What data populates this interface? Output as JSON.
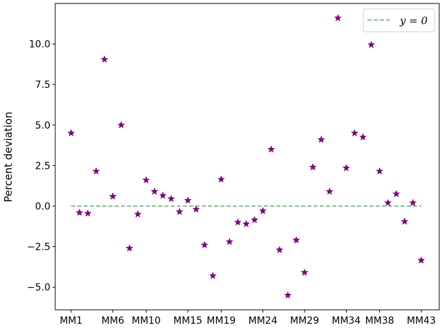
{
  "chart_data": {
    "type": "scatter",
    "ylabel": "Percent deviation",
    "xlabel": "",
    "ylim": [
      -6.4,
      12.5
    ],
    "yticks": [
      -5.0,
      -2.5,
      0.0,
      2.5,
      5.0,
      7.5,
      10.0
    ],
    "ytick_labels": [
      "−5.0",
      "−2.5",
      "0.0",
      "2.5",
      "5.0",
      "7.5",
      "10.0"
    ],
    "xticks": [
      {
        "index": 0,
        "label": "MM1"
      },
      {
        "index": 5,
        "label": "MM6"
      },
      {
        "index": 9,
        "label": "MM10"
      },
      {
        "index": 14,
        "label": "MM15"
      },
      {
        "index": 18,
        "label": "MM19"
      },
      {
        "index": 23,
        "label": "MM24"
      },
      {
        "index": 28,
        "label": "MM29"
      },
      {
        "index": 33,
        "label": "MM34"
      },
      {
        "index": 37,
        "label": "MM38"
      },
      {
        "index": 42,
        "label": "MM43"
      }
    ],
    "series": [
      {
        "marker": "star",
        "color": "#800080",
        "values": [
          4.5,
          -0.4,
          -0.45,
          2.15,
          9.05,
          0.6,
          5.0,
          -2.6,
          -0.5,
          1.6,
          0.9,
          0.65,
          0.45,
          -0.35,
          0.35,
          -0.2,
          -2.4,
          -4.3,
          1.65,
          -2.2,
          -1.0,
          -1.1,
          -0.85,
          -0.3,
          3.5,
          -2.7,
          -5.5,
          -2.1,
          -4.1,
          2.4,
          4.1,
          0.9,
          11.6,
          2.35,
          4.5,
          4.25,
          9.95,
          2.15,
          0.2,
          0.75,
          -0.95,
          0.2,
          -3.35
        ]
      }
    ],
    "reference_line": {
      "y": 0,
      "style": "dashed",
      "color": "#5cb85c"
    },
    "legend": {
      "entries": [
        "y = 0"
      ],
      "location": "top-right"
    },
    "grid": false
  }
}
